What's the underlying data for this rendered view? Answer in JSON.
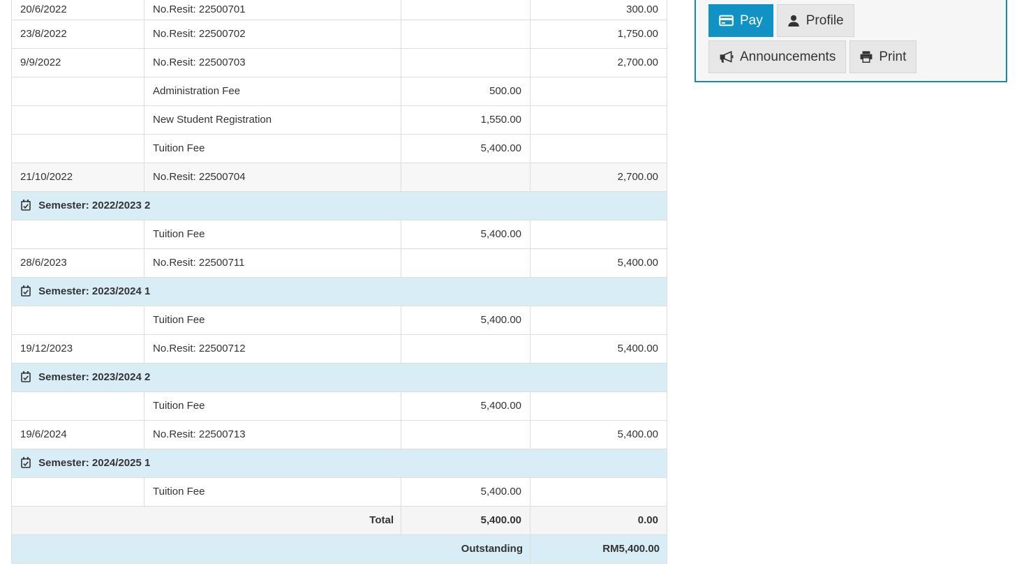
{
  "colors": {
    "accent": "#1192c5",
    "panel_border": "#1387b9",
    "info_bg": "#d9edf7",
    "table_border": "#dddddd",
    "stripe_bg": "#f7f7f7",
    "total_bg": "#f5f5f5",
    "text": "#333333"
  },
  "statement_table": {
    "rows": [
      {
        "type": "receipt",
        "clipped": true,
        "date": "20/6/2022",
        "description": "No.Resit: 22500701",
        "charge": "",
        "paid": "300.00"
      },
      {
        "type": "receipt",
        "date": "23/8/2022",
        "description": "No.Resit: 22500702",
        "charge": "",
        "paid": "1,750.00"
      },
      {
        "type": "receipt",
        "date": "9/9/2022",
        "description": "No.Resit: 22500703",
        "charge": "",
        "paid": "2,700.00"
      },
      {
        "type": "charge",
        "date": "",
        "description": "Administration Fee",
        "charge": "500.00",
        "paid": ""
      },
      {
        "type": "charge",
        "date": "",
        "description": "New Student Registration",
        "charge": "1,550.00",
        "paid": ""
      },
      {
        "type": "charge",
        "date": "",
        "description": "Tuition Fee",
        "charge": "5,400.00",
        "paid": ""
      },
      {
        "type": "receipt",
        "shaded": true,
        "date": "21/10/2022",
        "description": "No.Resit: 22500704",
        "charge": "",
        "paid": "2,700.00"
      },
      {
        "type": "semester",
        "icon": "calendar-check-icon",
        "label": "Semester: 2022/2023 2"
      },
      {
        "type": "charge",
        "date": "",
        "description": "Tuition Fee",
        "charge": "5,400.00",
        "paid": ""
      },
      {
        "type": "receipt",
        "date": "28/6/2023",
        "description": "No.Resit: 22500711",
        "charge": "",
        "paid": "5,400.00"
      },
      {
        "type": "semester",
        "icon": "calendar-check-icon",
        "label": "Semester: 2023/2024 1"
      },
      {
        "type": "charge",
        "date": "",
        "description": "Tuition Fee",
        "charge": "5,400.00",
        "paid": ""
      },
      {
        "type": "receipt",
        "date": "19/12/2023",
        "description": "No.Resit: 22500712",
        "charge": "",
        "paid": "5,400.00"
      },
      {
        "type": "semester",
        "icon": "calendar-check-icon",
        "label": "Semester: 2023/2024 2"
      },
      {
        "type": "charge",
        "date": "",
        "description": "Tuition Fee",
        "charge": "5,400.00",
        "paid": ""
      },
      {
        "type": "receipt",
        "date": "19/6/2024",
        "description": "No.Resit: 22500713",
        "charge": "",
        "paid": "5,400.00"
      },
      {
        "type": "semester",
        "icon": "calendar-check-icon",
        "label": "Semester: 2024/2025 1"
      },
      {
        "type": "charge",
        "date": "",
        "description": "Tuition Fee",
        "charge": "5,400.00",
        "paid": ""
      }
    ],
    "total_row": {
      "label": "Total",
      "charge": "5,400.00",
      "paid": "0.00"
    },
    "outstanding_row": {
      "label": "Outstanding",
      "amount": "RM5,400.00"
    }
  },
  "actions_panel": {
    "buttons": [
      {
        "id": "pay",
        "label": "Pay",
        "icon": "credit-card-icon",
        "primary": true
      },
      {
        "id": "profile",
        "label": "Profile",
        "icon": "user-icon",
        "primary": false
      },
      {
        "id": "announcements",
        "label": "Announcements",
        "icon": "megaphone-icon",
        "primary": false
      },
      {
        "id": "print",
        "label": "Print",
        "icon": "printer-icon",
        "primary": false
      }
    ]
  }
}
